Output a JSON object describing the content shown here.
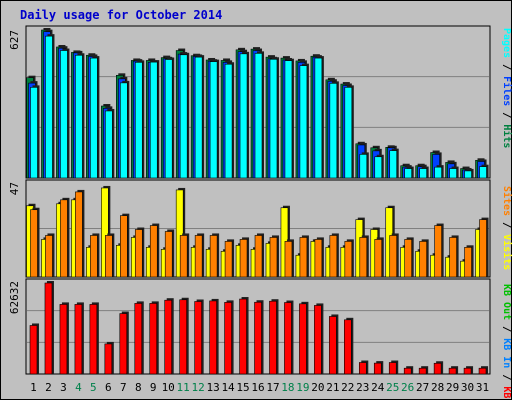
{
  "title": "Daily usage for October 2014",
  "colors": {
    "background": "#c0c0c0",
    "title": "#0000cc",
    "grid": "#808080",
    "hits": "#008040",
    "files": "#0040ff",
    "pages": "#00ffff",
    "visits": "#ffff00",
    "sites": "#ff8000",
    "kbf": "#ff0000",
    "kbin": "#0080ff",
    "kbout": "#00c000"
  },
  "chart_data": [
    {
      "type": "bar",
      "panel": "hits",
      "ymax_label": "627",
      "ymax": 627,
      "legend": [
        "Pages",
        "Files",
        "Hits"
      ],
      "categories": [
        "1",
        "2",
        "3",
        "4",
        "5",
        "6",
        "7",
        "8",
        "9",
        "10",
        "11",
        "12",
        "13",
        "14",
        "15",
        "16",
        "17",
        "18",
        "19",
        "20",
        "21",
        "22",
        "23",
        "24",
        "25",
        "26",
        "27",
        "28",
        "29",
        "30",
        "31"
      ],
      "weekend_days": [
        "4",
        "5",
        "11",
        "12",
        "18",
        "19",
        "25",
        "26"
      ],
      "series": [
        {
          "name": "Hits",
          "values": [
            425,
            627,
            555,
            532,
            520,
            305,
            435,
            498,
            498,
            510,
            540,
            518,
            500,
            498,
            543,
            546,
            512,
            508,
            496,
            516,
            416,
            398,
            145,
            128,
            130,
            52,
            52,
            108,
            66,
            40,
            75
          ]
        },
        {
          "name": "Files",
          "values": [
            402,
            620,
            550,
            530,
            515,
            295,
            420,
            495,
            490,
            505,
            525,
            515,
            495,
            490,
            535,
            540,
            505,
            500,
            490,
            512,
            410,
            392,
            140,
            115,
            128,
            46,
            48,
            100,
            60,
            34,
            70
          ]
        },
        {
          "name": "Pages",
          "values": [
            384,
            601,
            540,
            520,
            508,
            284,
            403,
            490,
            491,
            502,
            522,
            512,
            493,
            482,
            526,
            528,
            503,
            497,
            476,
            508,
            401,
            384,
            100,
            90,
            116,
            40,
            40,
            46,
            40,
            30,
            48
          ]
        }
      ]
    },
    {
      "type": "bar",
      "panel": "visits",
      "ymax_label": "47",
      "ymax": 47,
      "legend": [
        "Visits",
        "Sites"
      ],
      "categories": [
        "1",
        "2",
        "3",
        "4",
        "5",
        "6",
        "7",
        "8",
        "9",
        "10",
        "11",
        "12",
        "13",
        "14",
        "15",
        "16",
        "17",
        "18",
        "19",
        "20",
        "21",
        "22",
        "23",
        "24",
        "25",
        "26",
        "27",
        "28",
        "29",
        "30",
        "31"
      ],
      "series": [
        {
          "name": "Visits",
          "values": [
            36,
            19,
            37,
            39,
            15,
            45,
            16,
            20,
            15,
            14,
            44,
            15,
            14,
            13,
            16,
            14,
            17,
            35,
            11,
            18,
            15,
            15,
            29,
            24,
            35,
            15,
            13,
            11,
            10,
            8,
            24
          ]
        },
        {
          "name": "Sites",
          "values": [
            34,
            21,
            39,
            43,
            21,
            21,
            31,
            24,
            26,
            23,
            21,
            21,
            21,
            18,
            19,
            21,
            20,
            18,
            20,
            19,
            21,
            18,
            20,
            19,
            21,
            19,
            18,
            26,
            20,
            15,
            29
          ]
        }
      ]
    },
    {
      "type": "bar",
      "panel": "kbytes",
      "ymax_label": "62632",
      "ymax": 62632,
      "legend": [
        "KB F",
        "KB In",
        "KB Out"
      ],
      "categories": [
        "1",
        "2",
        "3",
        "4",
        "5",
        "6",
        "7",
        "8",
        "9",
        "10",
        "11",
        "12",
        "13",
        "14",
        "15",
        "16",
        "17",
        "18",
        "19",
        "20",
        "21",
        "22",
        "23",
        "24",
        "25",
        "26",
        "27",
        "28",
        "29",
        "30",
        "31"
      ],
      "series": [
        {
          "name": "KB F",
          "values": [
            33400,
            62632,
            47900,
            47900,
            47900,
            20700,
            41600,
            48600,
            48600,
            50800,
            51100,
            49900,
            50300,
            49300,
            51600,
            49400,
            50100,
            49200,
            48300,
            47200,
            39600,
            37300,
            7900,
            7500,
            7900,
            4000,
            4000,
            7400,
            4000,
            4000,
            4000
          ]
        }
      ]
    }
  ]
}
